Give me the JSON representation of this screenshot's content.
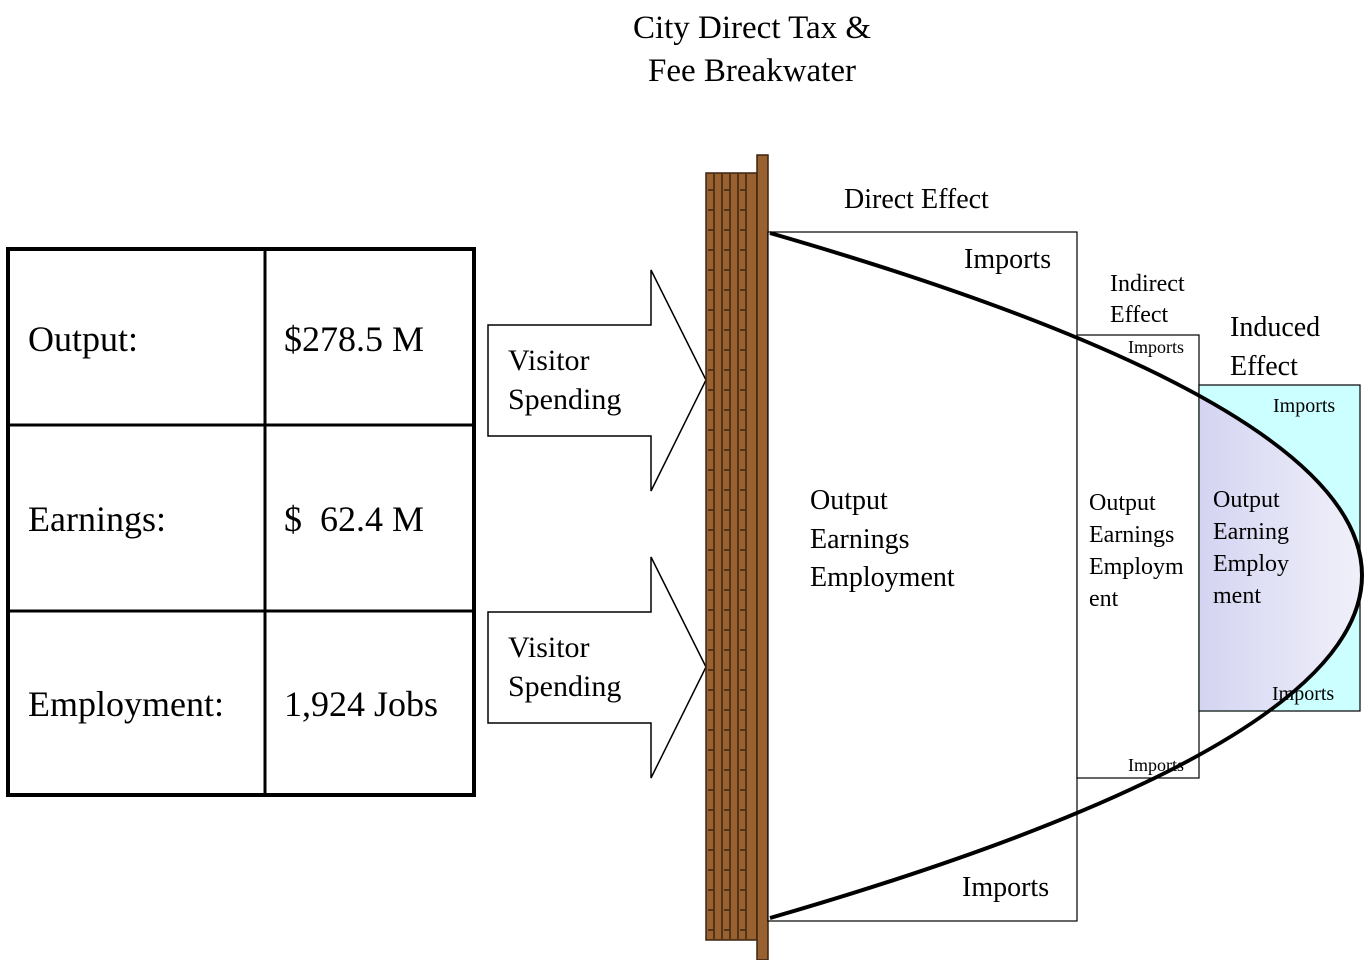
{
  "title": [
    "City Direct Tax &",
    "Fee Breakwater"
  ],
  "table": {
    "rows": [
      [
        "Output:",
        "$278.5 M"
      ],
      [
        "Earnings:",
        "$  62.4 M"
      ],
      [
        "Employment:",
        "1,924 Jobs"
      ]
    ]
  },
  "arrows": [
    [
      "Visitor",
      "Spending"
    ],
    [
      "Visitor",
      "Spending"
    ]
  ],
  "effects": {
    "direct": {
      "label": [
        "Direct Effect"
      ],
      "imports": [
        "Imports",
        "Imports"
      ],
      "body": [
        "Output",
        "Earnings",
        "Employment"
      ]
    },
    "indirect": {
      "label": [
        "Indirect",
        "Effect"
      ],
      "imports": [
        "Imports",
        "Imports"
      ],
      "body": [
        "Output",
        "Earnings",
        "Employm",
        "ent"
      ]
    },
    "induced": {
      "label": [
        "Induced",
        "Effect"
      ],
      "imports": [
        "Imports",
        "Imports"
      ],
      "body": [
        "Output",
        "Earning",
        "Employ",
        "ment"
      ]
    }
  }
}
